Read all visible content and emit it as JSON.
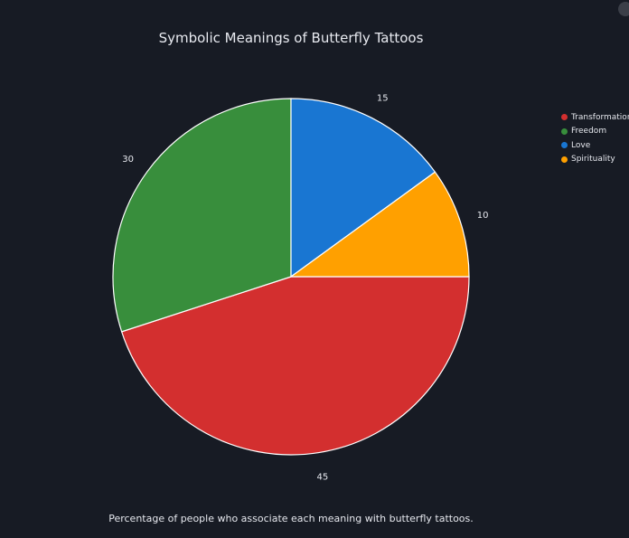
{
  "chart_data": {
    "type": "pie",
    "title": "Symbolic Meanings of Butterfly Tattoos",
    "caption": "Percentage of people who associate each meaning with butterfly tattoos.",
    "categories": [
      "Transformation",
      "Freedom",
      "Love",
      "Spirituality"
    ],
    "values": [
      45,
      30,
      15,
      10
    ],
    "colors": [
      "#d32f2f",
      "#388e3c",
      "#1976d2",
      "#ffa000"
    ],
    "legend_position": "top-right"
  }
}
